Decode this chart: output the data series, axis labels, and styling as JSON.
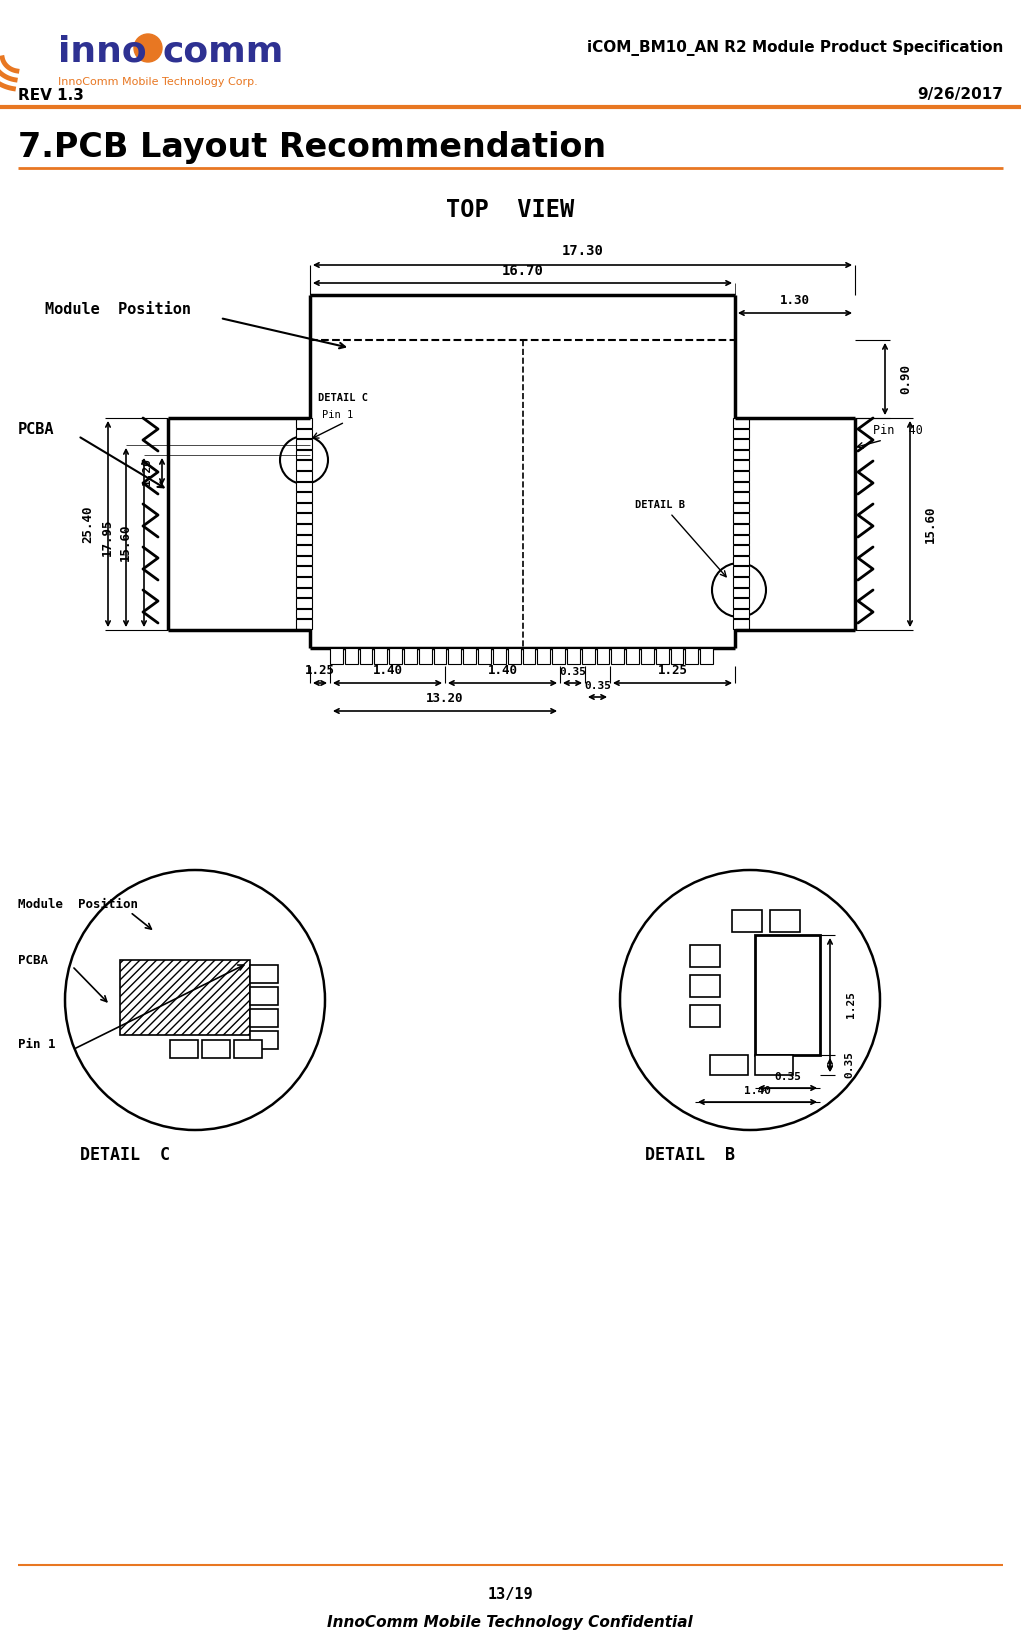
{
  "header_title": "iCOM_BM10_AN R2 Module Product Specification",
  "header_rev": "REV 1.3",
  "header_date": "9/26/2017",
  "footer_page": "13/19",
  "footer_conf": "InnoComm Mobile Technology Confidential",
  "top_view_label": "TOP  VIEW",
  "bg_color": "#ffffff",
  "orange_color": "#e87722",
  "blue_color": "#2e3192",
  "section_title": "7.PCB Layout Recommendation"
}
